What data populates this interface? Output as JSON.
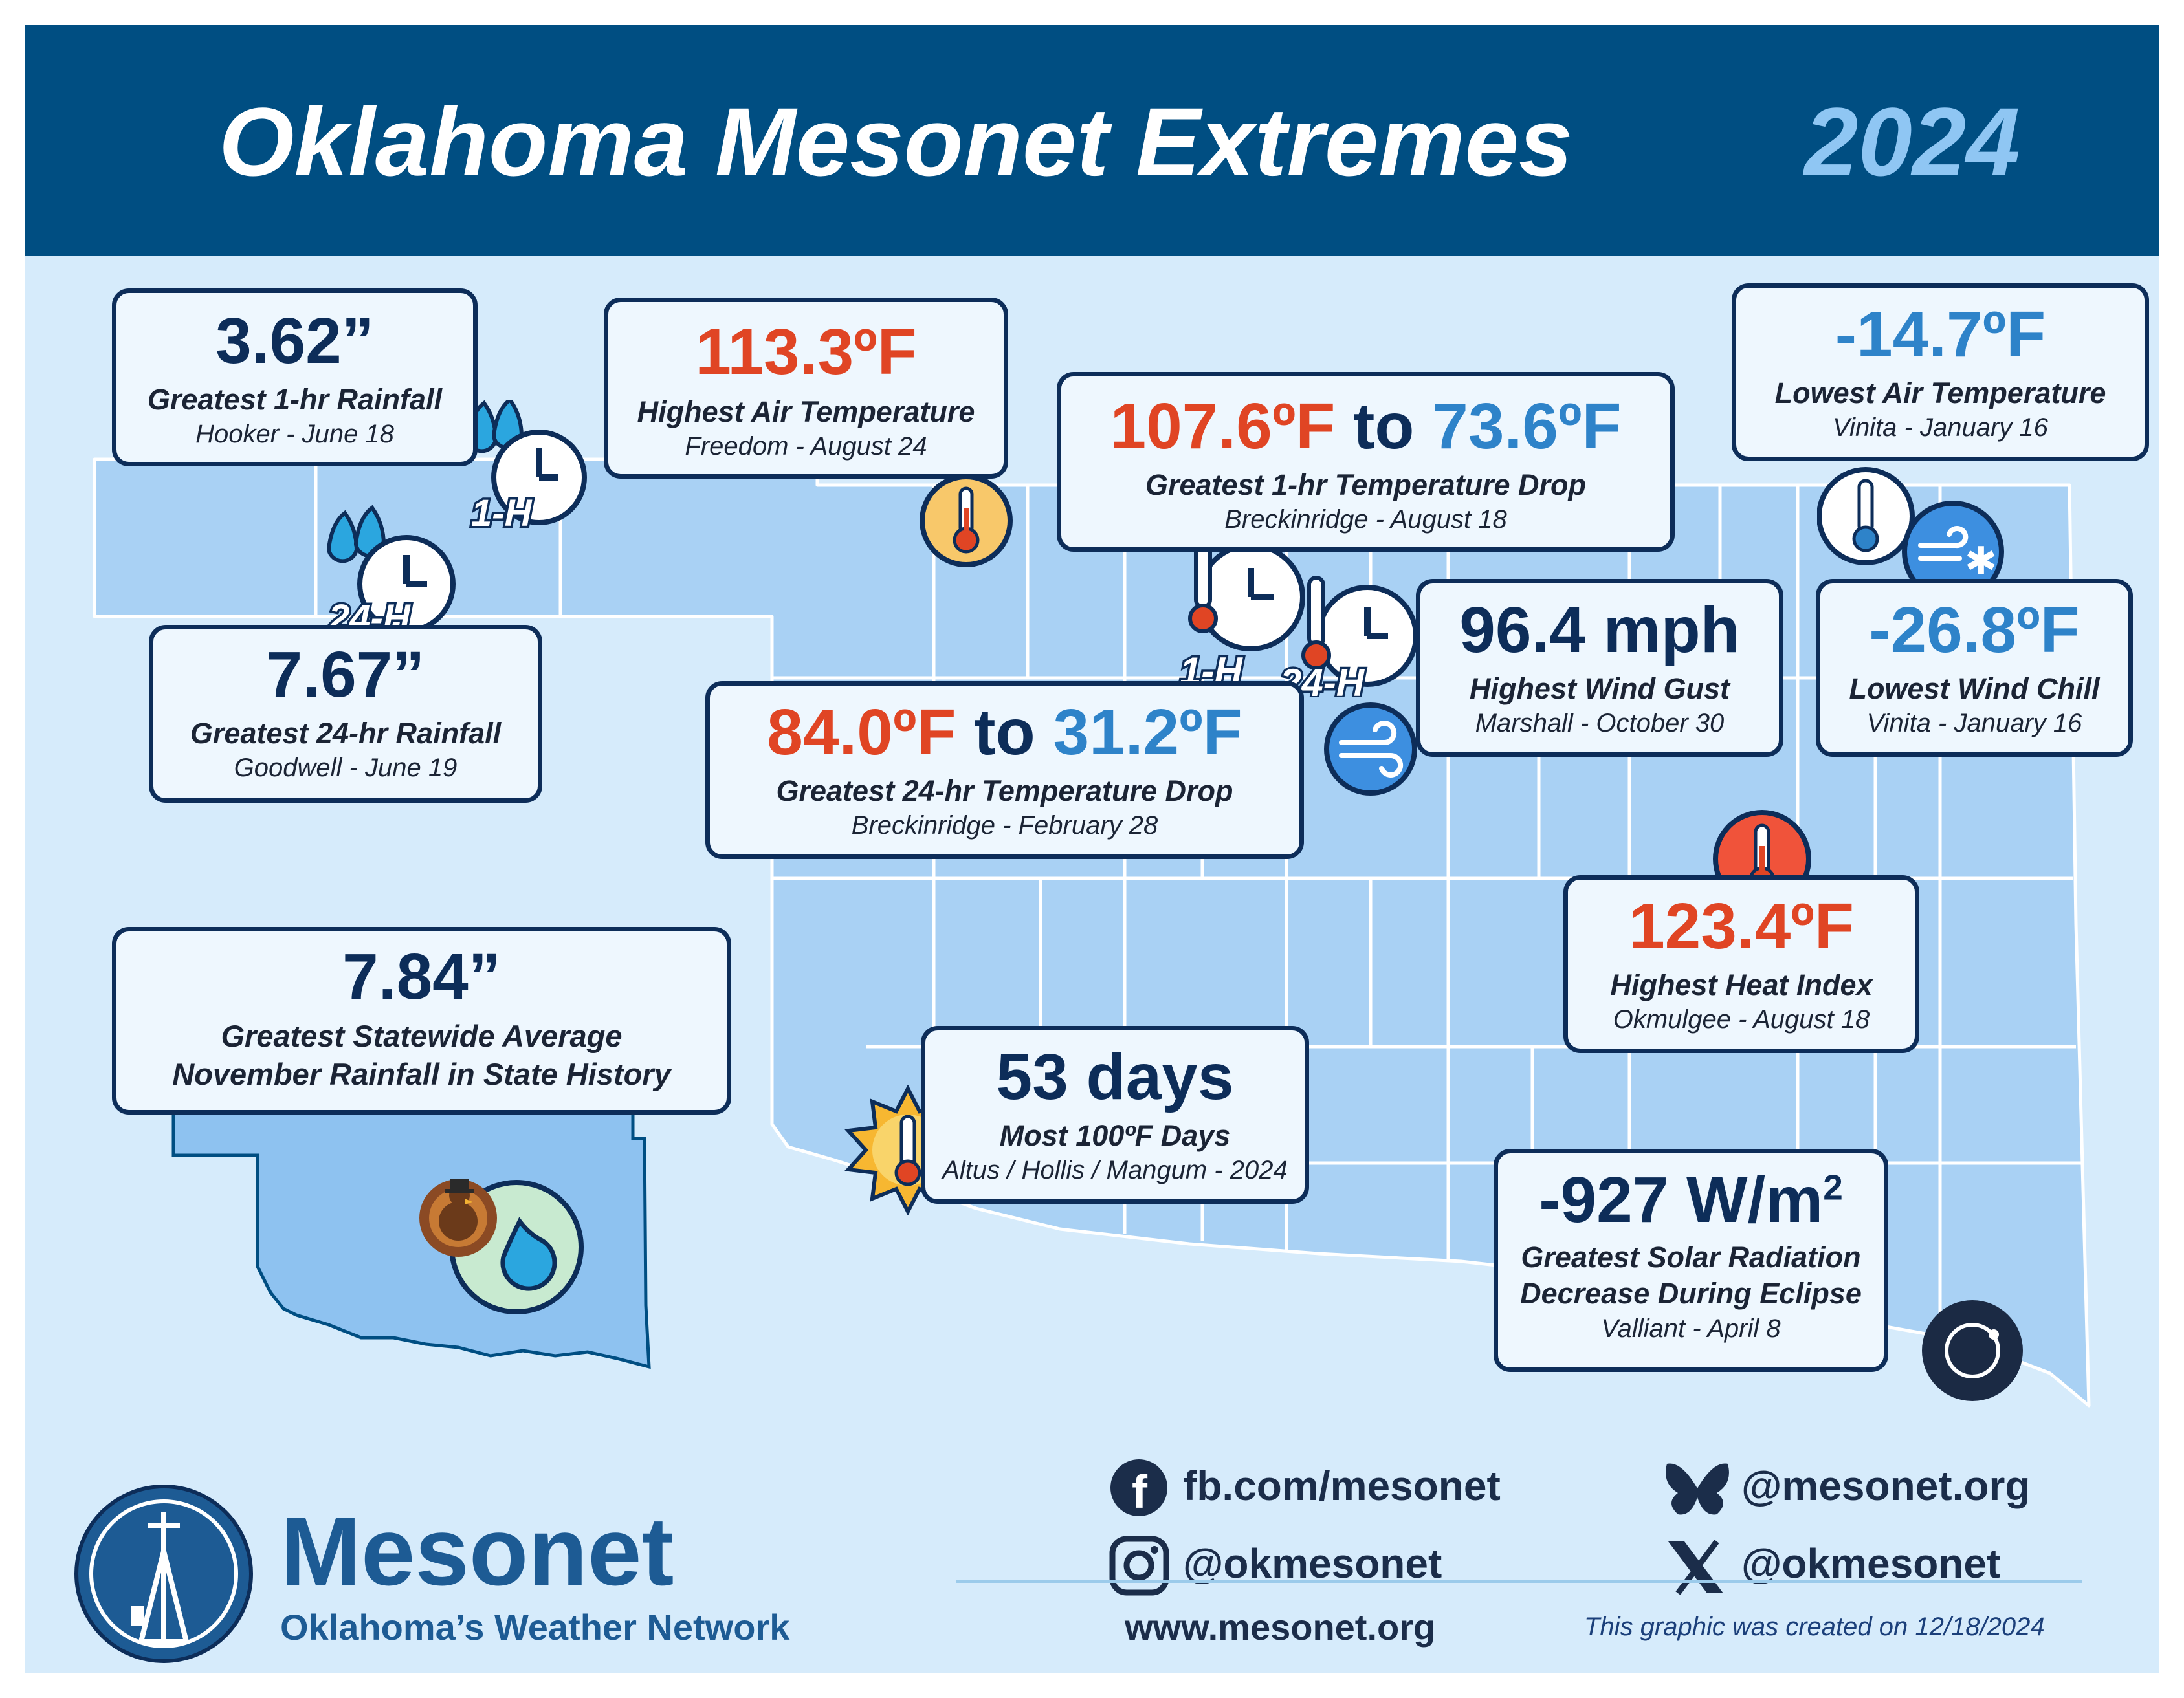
{
  "header": {
    "title": "Oklahoma Mesonet Extremes",
    "year": "2024"
  },
  "records": {
    "rain_1hr": {
      "value": "3.62”",
      "label": "Greatest 1-hr Rainfall",
      "station": "Hooker - June 18",
      "badge": "1-H"
    },
    "rain_24hr": {
      "value": "7.67”",
      "label": "Greatest 24-hr Rainfall",
      "station": "Goodwell - June 19",
      "badge": "24-H"
    },
    "high_temp": {
      "value": "113.3ºF",
      "label": "Highest Air Temperature",
      "station": "Freedom - August 24"
    },
    "drop_1hr": {
      "from": "107.6ºF",
      "to_word": "to",
      "to": "73.6ºF",
      "label": "Greatest 1-hr Temperature Drop",
      "station": "Breckinridge - August 18",
      "badge": "1-H"
    },
    "low_temp": {
      "value": "-14.7ºF",
      "label": "Lowest Air Temperature",
      "station": "Vinita - January 16"
    },
    "wind_gust": {
      "value": "96.4 mph",
      "label": "Highest Wind Gust",
      "station": "Marshall - October 30"
    },
    "wind_chill": {
      "value": "-26.8ºF",
      "label": "Lowest Wind Chill",
      "station": "Vinita - January 16"
    },
    "drop_24hr": {
      "from": "84.0ºF",
      "to_word": "to",
      "to": "31.2ºF",
      "label": "Greatest 24-hr Temperature Drop",
      "station": "Breckinridge - February 28",
      "badge": "24-H"
    },
    "heat_index": {
      "value": "123.4ºF",
      "label": "Highest Heat Index",
      "station": "Okmulgee - August 18"
    },
    "statewide_rain": {
      "value": "7.84”",
      "label_line1": "Greatest Statewide Average",
      "label_line2": "November Rainfall in State History"
    },
    "hundred_days": {
      "value": "53 days",
      "label": "Most 100ºF Days",
      "station": "Altus / Hollis / Mangum - 2024"
    },
    "solar": {
      "value": "-927 W/m",
      "value_sup": "2",
      "label_line1": "Greatest Solar Radiation",
      "label_line2": "Decrease During Eclipse",
      "station": "Valliant - April 8"
    }
  },
  "icons": [
    "rain-clock-icon",
    "thermometer-icon",
    "wind-icon",
    "wind-snow-icon",
    "sun-thermometer-icon",
    "eclipse-icon",
    "turkey-icon",
    "raindrop-icon"
  ],
  "logo": {
    "name": "Mesonet",
    "tagline": "Oklahoma’s Weather Network"
  },
  "social": {
    "facebook": "fb.com/mesonet",
    "bluesky": "@mesonet.org",
    "instagram": "@okmesonet",
    "x": "@okmesonet",
    "website": "www.mesonet.org"
  },
  "footer": {
    "created": "This graphic was created on 12/18/2024"
  },
  "colors": {
    "header": "#004e82",
    "background": "#d6ebfb",
    "map_fill": "#a9d1f4",
    "navy": "#0d2d59",
    "red": "#e04524",
    "blue": "#2e83c9",
    "year": "#8fc6f3"
  }
}
